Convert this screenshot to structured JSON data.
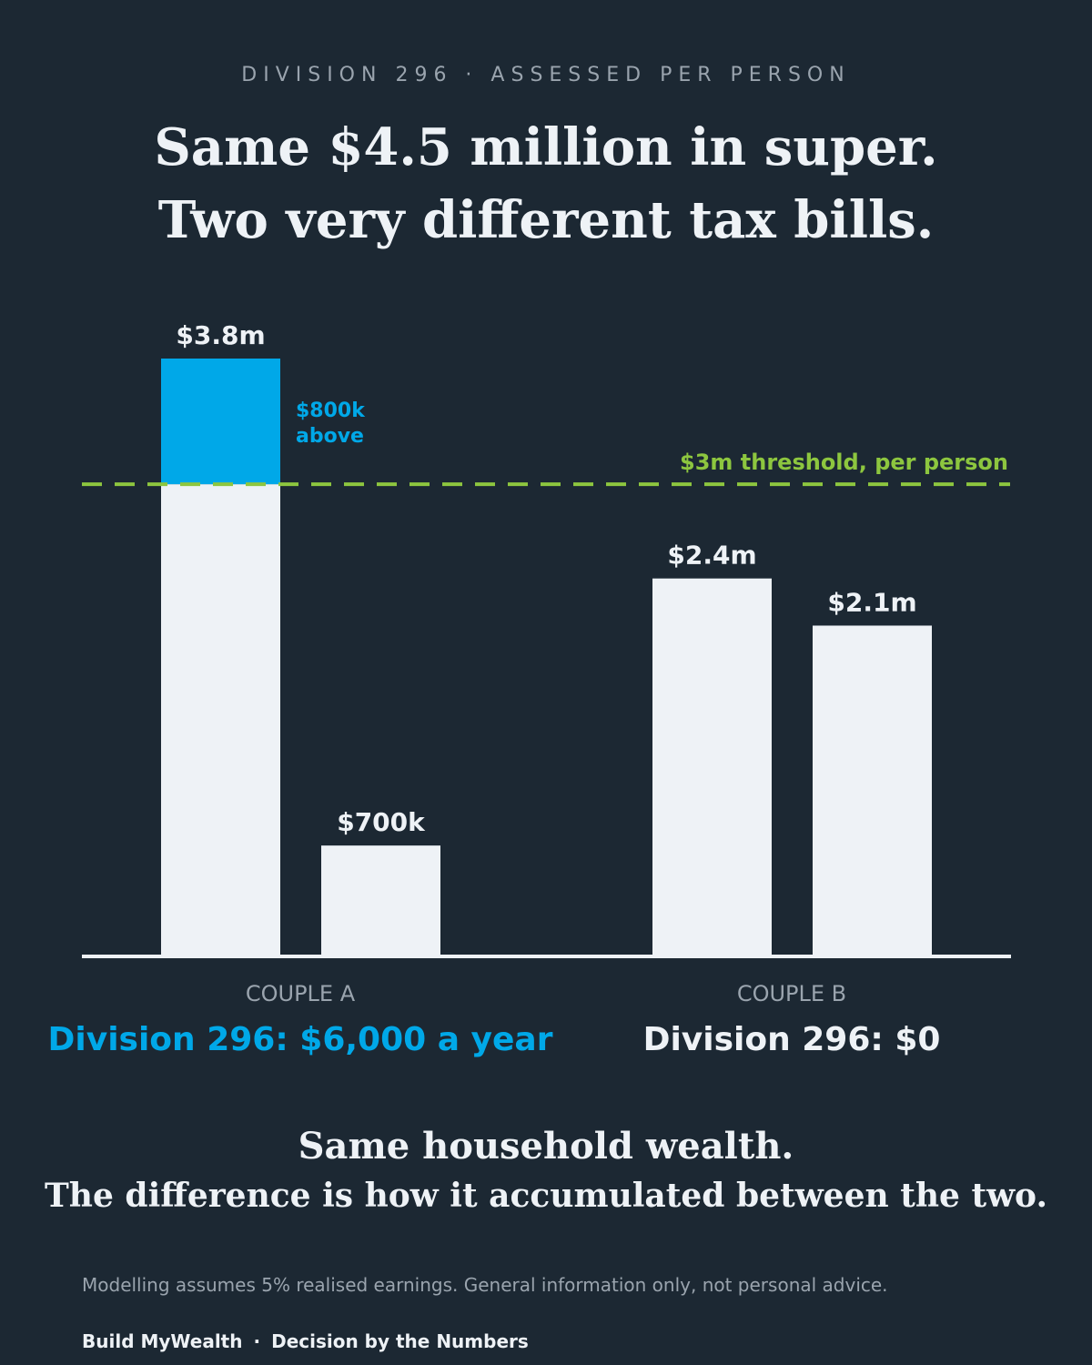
{
  "header": {
    "kicker": "DIVISION 296 · ASSESSED PER PERSON",
    "title_line1": "Same $4.5 million in super.",
    "title_line2": "Two very different tax bills."
  },
  "chart_data": {
    "type": "bar",
    "groups": [
      {
        "label": "COUPLE A",
        "result": "Division 296: $6,000 a year",
        "bars": [
          {
            "value": 3.8,
            "label": "$3.8m",
            "excess": 0.8,
            "excess_label_line1": "$800k",
            "excess_label_line2": "above"
          },
          {
            "value": 0.7,
            "label": "$700k"
          }
        ]
      },
      {
        "label": "COUPLE B",
        "result": "Division 296: $0",
        "bars": [
          {
            "value": 2.4,
            "label": "$2.4m"
          },
          {
            "value": 2.1,
            "label": "$2.1m"
          }
        ]
      }
    ],
    "threshold": {
      "value": 3.0,
      "label": "$3m threshold, per person"
    },
    "unit": "$m",
    "ylim": [
      0,
      3.8
    ],
    "grid": false,
    "legend": "none"
  },
  "colors": {
    "background": "#1c2833",
    "bar": "#eef2f6",
    "excess": "#00a8e8",
    "threshold": "#8dc63f",
    "muted": "#9aa4ae",
    "text": "#eef2f6"
  },
  "takeaway": {
    "line1": "Same household wealth.",
    "line2": "The difference is how it accumulated between the two."
  },
  "footer": {
    "note": "Modelling assumes 5% realised earnings. General information only, not personal advice.",
    "brand": "Build MyWealth",
    "separator": "·",
    "tagline": "Decision by the Numbers"
  }
}
